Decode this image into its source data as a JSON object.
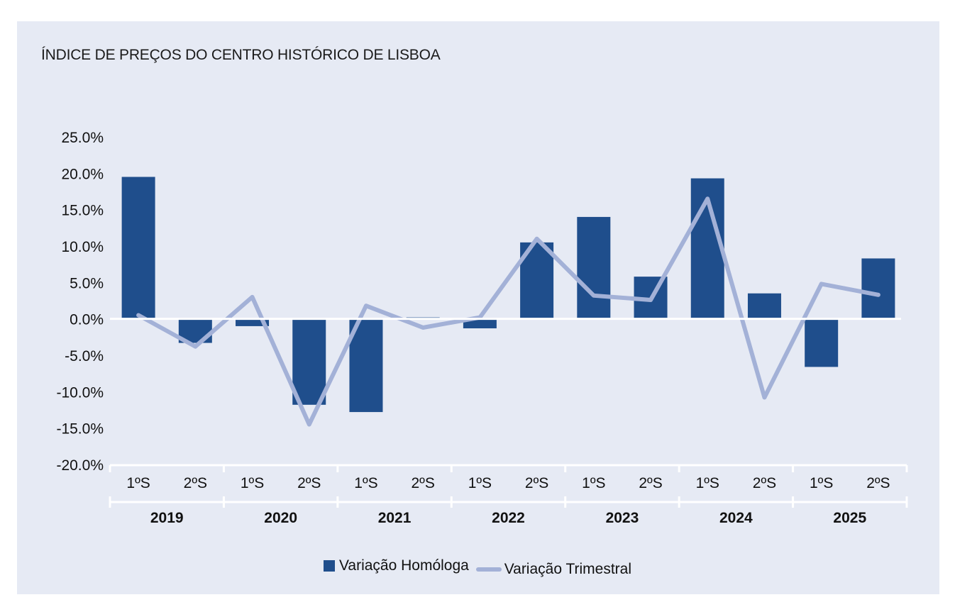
{
  "chart_data": {
    "type": "bar",
    "title": "ÍNDICE DE PREÇOS DO CENTRO HISTÓRICO DE LISBOA",
    "ylim": [
      -20,
      25
    ],
    "yticks": [
      25,
      20,
      15,
      10,
      5,
      0,
      -5,
      -10,
      -15,
      -20
    ],
    "ytick_labels": [
      "25.0%",
      "20.0%",
      "15.0%",
      "10.0%",
      "5.0%",
      "0.0%",
      "-5.0%",
      "-10.0%",
      "-15.0%",
      "-20.0%"
    ],
    "categories": [
      "1ºS",
      "2ºS",
      "1ºS",
      "2ºS",
      "1ºS",
      "2ºS",
      "1ºS",
      "2ºS",
      "1ºS",
      "2ºS",
      "1ºS",
      "2ºS",
      "1ºS",
      "2ºS"
    ],
    "groups": [
      "2019",
      "2020",
      "2021",
      "2022",
      "2023",
      "2024",
      "2025"
    ],
    "series": [
      {
        "name": "Variação Homóloga",
        "type": "bar",
        "color": "#1f4e8c",
        "values": [
          19.5,
          -3.3,
          -1.0,
          -11.8,
          -12.8,
          0.2,
          -1.3,
          10.5,
          14.0,
          5.8,
          19.3,
          3.5,
          -6.6,
          8.3
        ]
      },
      {
        "name": "Variação Trimestral",
        "type": "line",
        "color": "#a3b1d7",
        "values": [
          0.5,
          -3.8,
          3.0,
          -14.5,
          1.8,
          -1.2,
          0.2,
          11.0,
          3.2,
          2.6,
          16.5,
          -10.8,
          4.8,
          3.3
        ]
      }
    ],
    "grid": false,
    "legend_position": "bottom-center"
  }
}
